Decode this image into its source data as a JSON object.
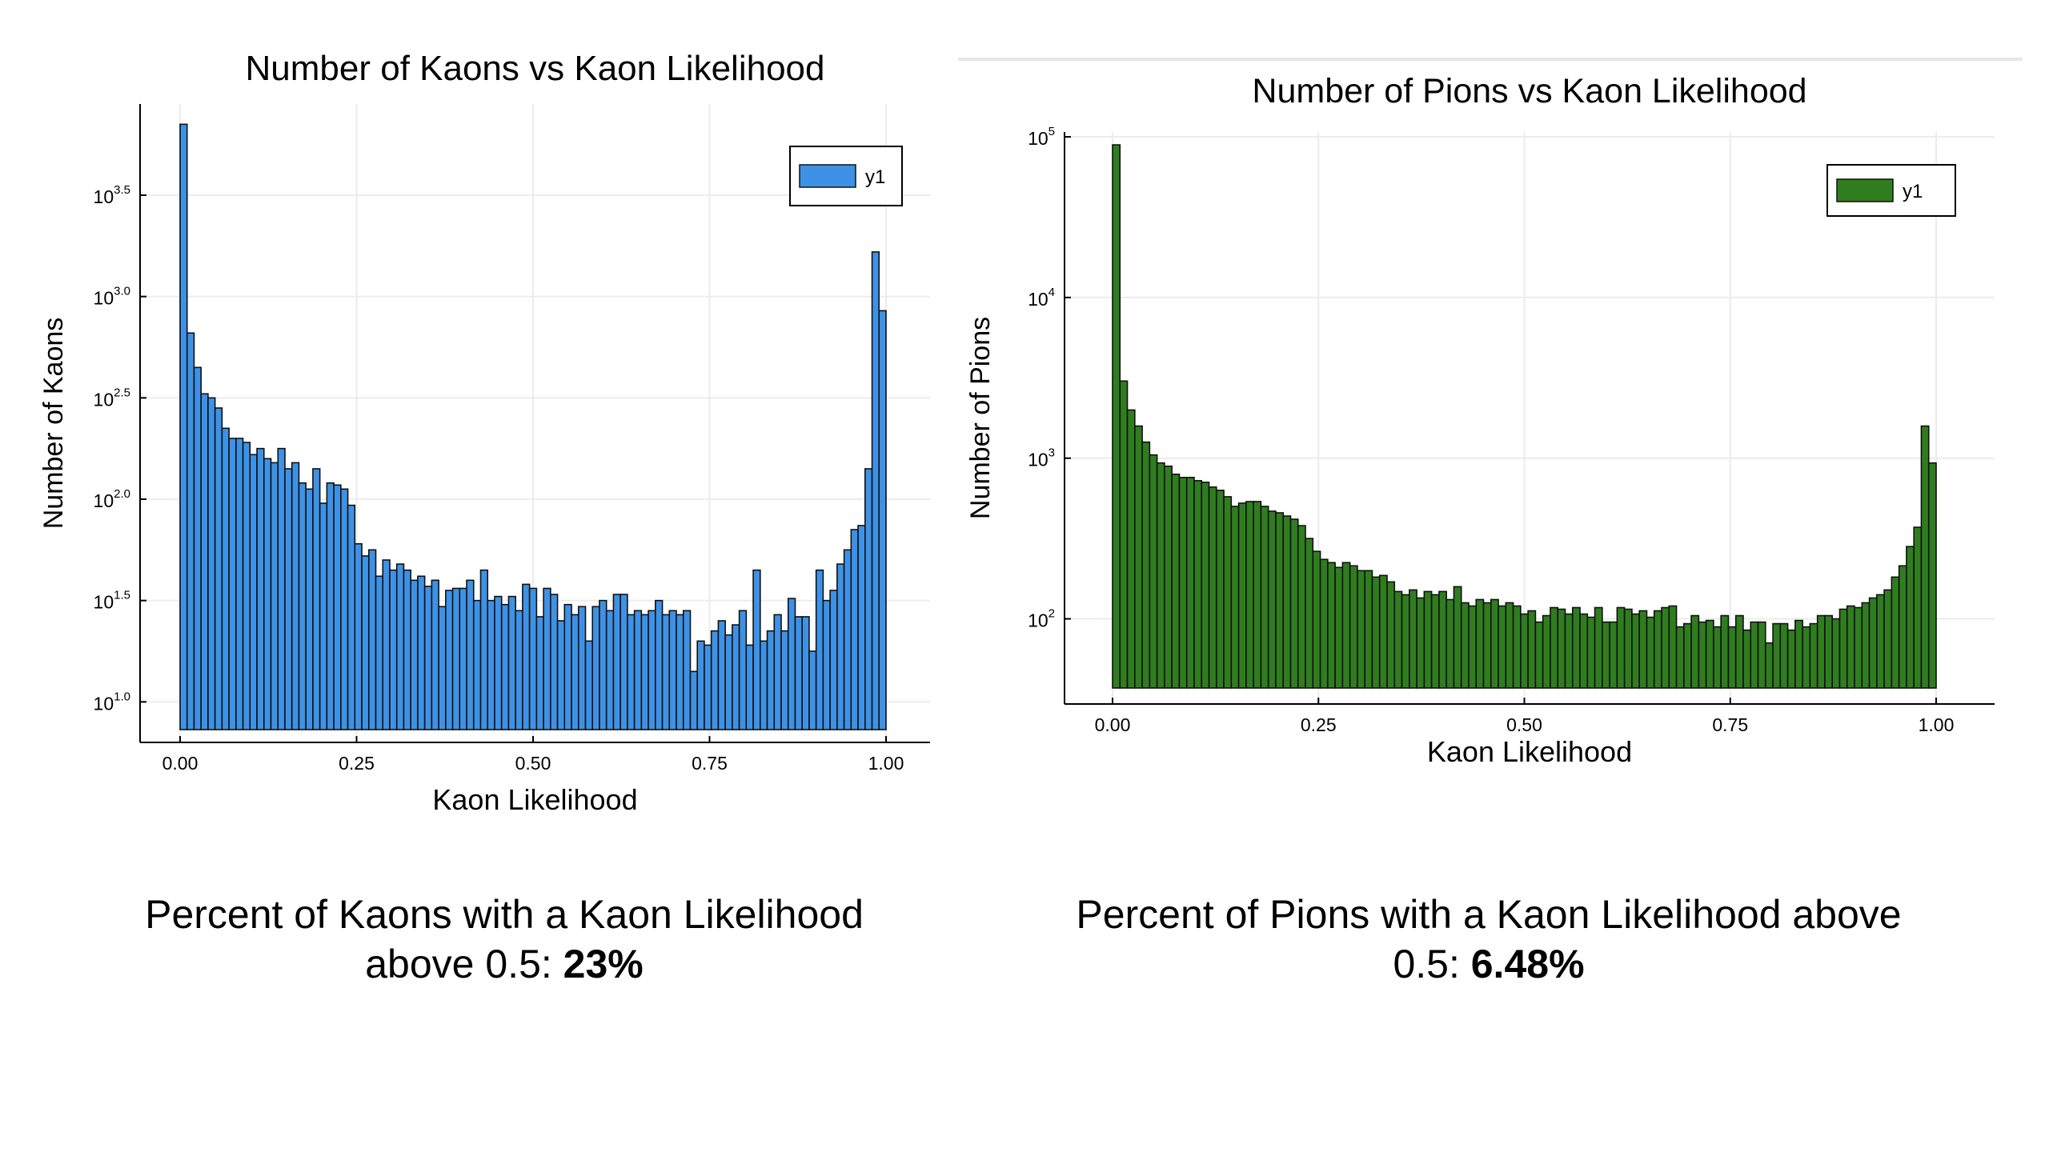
{
  "charts": [
    {
      "id": "kaons",
      "title": "Number of Kaons vs Kaon Likelihood",
      "xlabel": "Kaon Likelihood",
      "ylabel": "Number of Kaons",
      "legend": "y1",
      "color": "#3e92e6",
      "caption_text": "Percent of Kaons with a Kaon Likelihood above 0.5: ",
      "caption_value": "23%"
    },
    {
      "id": "pions",
      "title": "Number of Pions vs Kaon Likelihood",
      "xlabel": "Kaon Likelihood",
      "ylabel": "Number of Pions",
      "legend": "y1",
      "color": "#2f7d1f",
      "caption_text": "Percent of Pions with a Kaon Likelihood above 0.5: ",
      "caption_value": "6.48%"
    }
  ],
  "chart_data": [
    {
      "type": "bar",
      "title": "Number of Kaons vs Kaon Likelihood",
      "xlabel": "Kaon Likelihood",
      "ylabel": "Number of Kaons",
      "y_scale": "log10",
      "xlim": [
        0,
        1
      ],
      "ylim": [
        0.8,
        3.95
      ],
      "x_ticks": [
        0.0,
        0.25,
        0.5,
        0.75,
        1.0
      ],
      "x_tick_labels": [
        "0.00",
        "0.25",
        "0.50",
        "0.75",
        "1.00"
      ],
      "y_ticks": [
        1.0,
        1.5,
        2.0,
        2.5,
        3.0,
        3.5
      ],
      "y_tick_labels": [
        [
          "10",
          "1.0"
        ],
        [
          "10",
          "1.5"
        ],
        [
          "10",
          "2.0"
        ],
        [
          "10",
          "2.5"
        ],
        [
          "10",
          "3.0"
        ],
        [
          "10",
          "3.5"
        ]
      ],
      "bin_width": 0.01,
      "legend": [
        "y1"
      ],
      "legend_position": "top-right",
      "grid": true,
      "series": [
        {
          "name": "y1",
          "log10_values": [
            3.85,
            2.82,
            2.65,
            2.52,
            2.5,
            2.45,
            2.35,
            2.3,
            2.3,
            2.28,
            2.22,
            2.25,
            2.2,
            2.18,
            2.25,
            2.15,
            2.18,
            2.08,
            2.05,
            2.15,
            1.98,
            2.08,
            2.07,
            2.05,
            1.97,
            1.78,
            1.72,
            1.75,
            1.62,
            1.7,
            1.65,
            1.68,
            1.65,
            1.6,
            1.62,
            1.57,
            1.6,
            1.47,
            1.55,
            1.56,
            1.56,
            1.6,
            1.5,
            1.65,
            1.5,
            1.52,
            1.48,
            1.52,
            1.45,
            1.58,
            1.56,
            1.42,
            1.56,
            1.53,
            1.4,
            1.48,
            1.43,
            1.47,
            1.3,
            1.47,
            1.5,
            1.45,
            1.53,
            1.53,
            1.43,
            1.45,
            1.43,
            1.45,
            1.5,
            1.43,
            1.45,
            1.43,
            1.45,
            1.15,
            1.3,
            1.28,
            1.35,
            1.4,
            1.33,
            1.38,
            1.45,
            1.28,
            1.65,
            1.3,
            1.35,
            1.43,
            1.35,
            1.51,
            1.42,
            1.42,
            1.25,
            1.65,
            1.5,
            1.55,
            1.68,
            1.75,
            1.85,
            1.87,
            2.15,
            3.22,
            2.93
          ]
        }
      ]
    },
    {
      "type": "bar",
      "title": "Number of Pions vs Kaon Likelihood",
      "xlabel": "Kaon Likelihood",
      "ylabel": "Number of Pions",
      "y_scale": "log10",
      "xlim": [
        0,
        1
      ],
      "ylim": [
        1.47,
        5.03
      ],
      "x_ticks": [
        0.0,
        0.25,
        0.5,
        0.75,
        1.0
      ],
      "x_tick_labels": [
        "0.00",
        "0.25",
        "0.50",
        "0.75",
        "1.00"
      ],
      "y_ticks": [
        2,
        3,
        4,
        5
      ],
      "y_tick_labels": [
        [
          "10",
          "2"
        ],
        [
          "10",
          "3"
        ],
        [
          "10",
          "4"
        ],
        [
          "10",
          "5"
        ]
      ],
      "bin_width": 0.01,
      "legend": [
        "y1"
      ],
      "legend_position": "top-right",
      "grid": true,
      "series": [
        {
          "name": "y1",
          "log10_values": [
            4.95,
            3.48,
            3.3,
            3.2,
            3.1,
            3.02,
            2.97,
            2.95,
            2.9,
            2.88,
            2.88,
            2.86,
            2.85,
            2.82,
            2.8,
            2.76,
            2.7,
            2.72,
            2.73,
            2.73,
            2.7,
            2.67,
            2.66,
            2.64,
            2.62,
            2.58,
            2.5,
            2.42,
            2.37,
            2.35,
            2.32,
            2.35,
            2.33,
            2.3,
            2.3,
            2.26,
            2.27,
            2.23,
            2.17,
            2.15,
            2.18,
            2.13,
            2.17,
            2.15,
            2.17,
            2.12,
            2.2,
            2.1,
            2.08,
            2.12,
            2.1,
            2.12,
            2.08,
            2.1,
            2.08,
            2.03,
            2.05,
            1.98,
            2.02,
            2.07,
            2.06,
            2.03,
            2.07,
            2.03,
            2.01,
            2.07,
            1.98,
            1.98,
            2.07,
            2.06,
            2.03,
            2.05,
            2.01,
            2.05,
            2.07,
            2.08,
            1.95,
            1.97,
            2.02,
            1.98,
            1.99,
            1.95,
            2.02,
            1.95,
            2.02,
            1.93,
            1.98,
            1.98,
            1.85,
            1.97,
            1.97,
            1.93,
            1.99,
            1.95,
            1.97,
            2.02,
            2.02,
            2.0,
            2.06,
            2.08,
            2.07,
            2.1,
            2.13,
            2.15,
            2.18,
            2.26,
            2.33,
            2.45,
            2.57,
            3.2,
            2.97
          ]
        }
      ]
    }
  ]
}
